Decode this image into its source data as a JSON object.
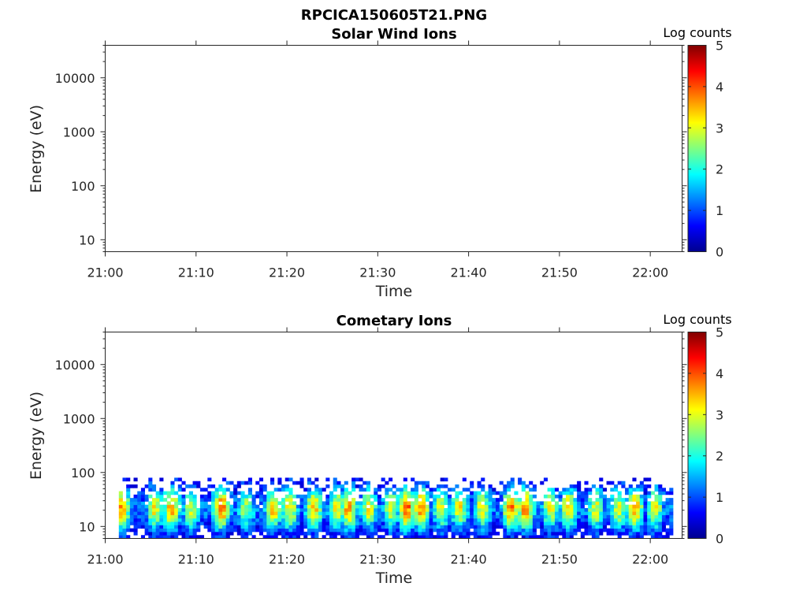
{
  "figure": {
    "title": "RPCICA150605T21.PNG"
  },
  "colors": {
    "colormap": [
      "#00008f",
      "#0000ff",
      "#0080ff",
      "#00ffff",
      "#80ff80",
      "#ffff00",
      "#ff8000",
      "#ff0000",
      "#800000"
    ],
    "axis": "#262626"
  },
  "chart_data": [
    {
      "type": "heatmap",
      "title": "Solar Wind Ions",
      "xlabel": "Time",
      "ylabel": "Energy (eV)",
      "x_ticks": [
        "21:00",
        "21:10",
        "21:20",
        "21:30",
        "21:40",
        "21:50",
        "22:00"
      ],
      "x_range_minutes": [
        0,
        63.5
      ],
      "y_scale": "log",
      "y_range": [
        6,
        40000
      ],
      "y_ticks": [
        10,
        100,
        1000,
        10000
      ],
      "y_tick_labels": [
        "10",
        "100",
        "1000",
        "10000"
      ],
      "colorbar": {
        "label": "Log counts",
        "range": [
          0,
          5
        ],
        "ticks": [
          "0",
          "1",
          "2",
          "3",
          "4",
          "5"
        ]
      },
      "data": "empty"
    },
    {
      "type": "heatmap",
      "title": "Cometary Ions",
      "xlabel": "Time",
      "ylabel": "Energy (eV)",
      "x_ticks": [
        "21:00",
        "21:10",
        "21:20",
        "21:30",
        "21:40",
        "21:50",
        "22:00"
      ],
      "x_range_minutes": [
        0,
        63.5
      ],
      "y_scale": "log",
      "y_range": [
        6,
        40000
      ],
      "y_ticks": [
        10,
        100,
        1000,
        10000
      ],
      "y_tick_labels": [
        "10",
        "100",
        "1000",
        "10000"
      ],
      "colorbar": {
        "label": "Log counts",
        "range": [
          0,
          5
        ],
        "ticks": [
          "0",
          "1",
          "2",
          "3",
          "4",
          "5"
        ]
      },
      "data_extent": {
        "time_minutes": [
          1.5,
          62.5
        ],
        "energy_eV": [
          6,
          80
        ]
      },
      "peak_energy_eV": 22,
      "bursts": [
        {
          "t": 1.8,
          "level": 3.6
        },
        {
          "t": 5.5,
          "level": 3.1
        },
        {
          "t": 7.3,
          "level": 3.5
        },
        {
          "t": 9.5,
          "level": 2.9
        },
        {
          "t": 12.8,
          "level": 3.8
        },
        {
          "t": 15.5,
          "level": 2.7
        },
        {
          "t": 18.5,
          "level": 3.3
        },
        {
          "t": 20.3,
          "level": 3.2
        },
        {
          "t": 23.0,
          "level": 3.4
        },
        {
          "t": 25.5,
          "level": 3.2
        },
        {
          "t": 26.8,
          "level": 3.6
        },
        {
          "t": 29.0,
          "level": 3.0
        },
        {
          "t": 31.5,
          "level": 2.9
        },
        {
          "t": 33.2,
          "level": 3.9
        },
        {
          "t": 34.8,
          "level": 3.7
        },
        {
          "t": 37.0,
          "level": 3.0
        },
        {
          "t": 39.0,
          "level": 3.1
        },
        {
          "t": 41.5,
          "level": 3.0
        },
        {
          "t": 44.7,
          "level": 3.8
        },
        {
          "t": 46.3,
          "level": 3.7
        },
        {
          "t": 49.0,
          "level": 3.0
        },
        {
          "t": 51.0,
          "level": 3.3
        },
        {
          "t": 54.0,
          "level": 3.0
        },
        {
          "t": 56.5,
          "level": 2.9
        },
        {
          "t": 58.3,
          "level": 3.6
        },
        {
          "t": 60.5,
          "level": 3.0
        }
      ]
    }
  ]
}
